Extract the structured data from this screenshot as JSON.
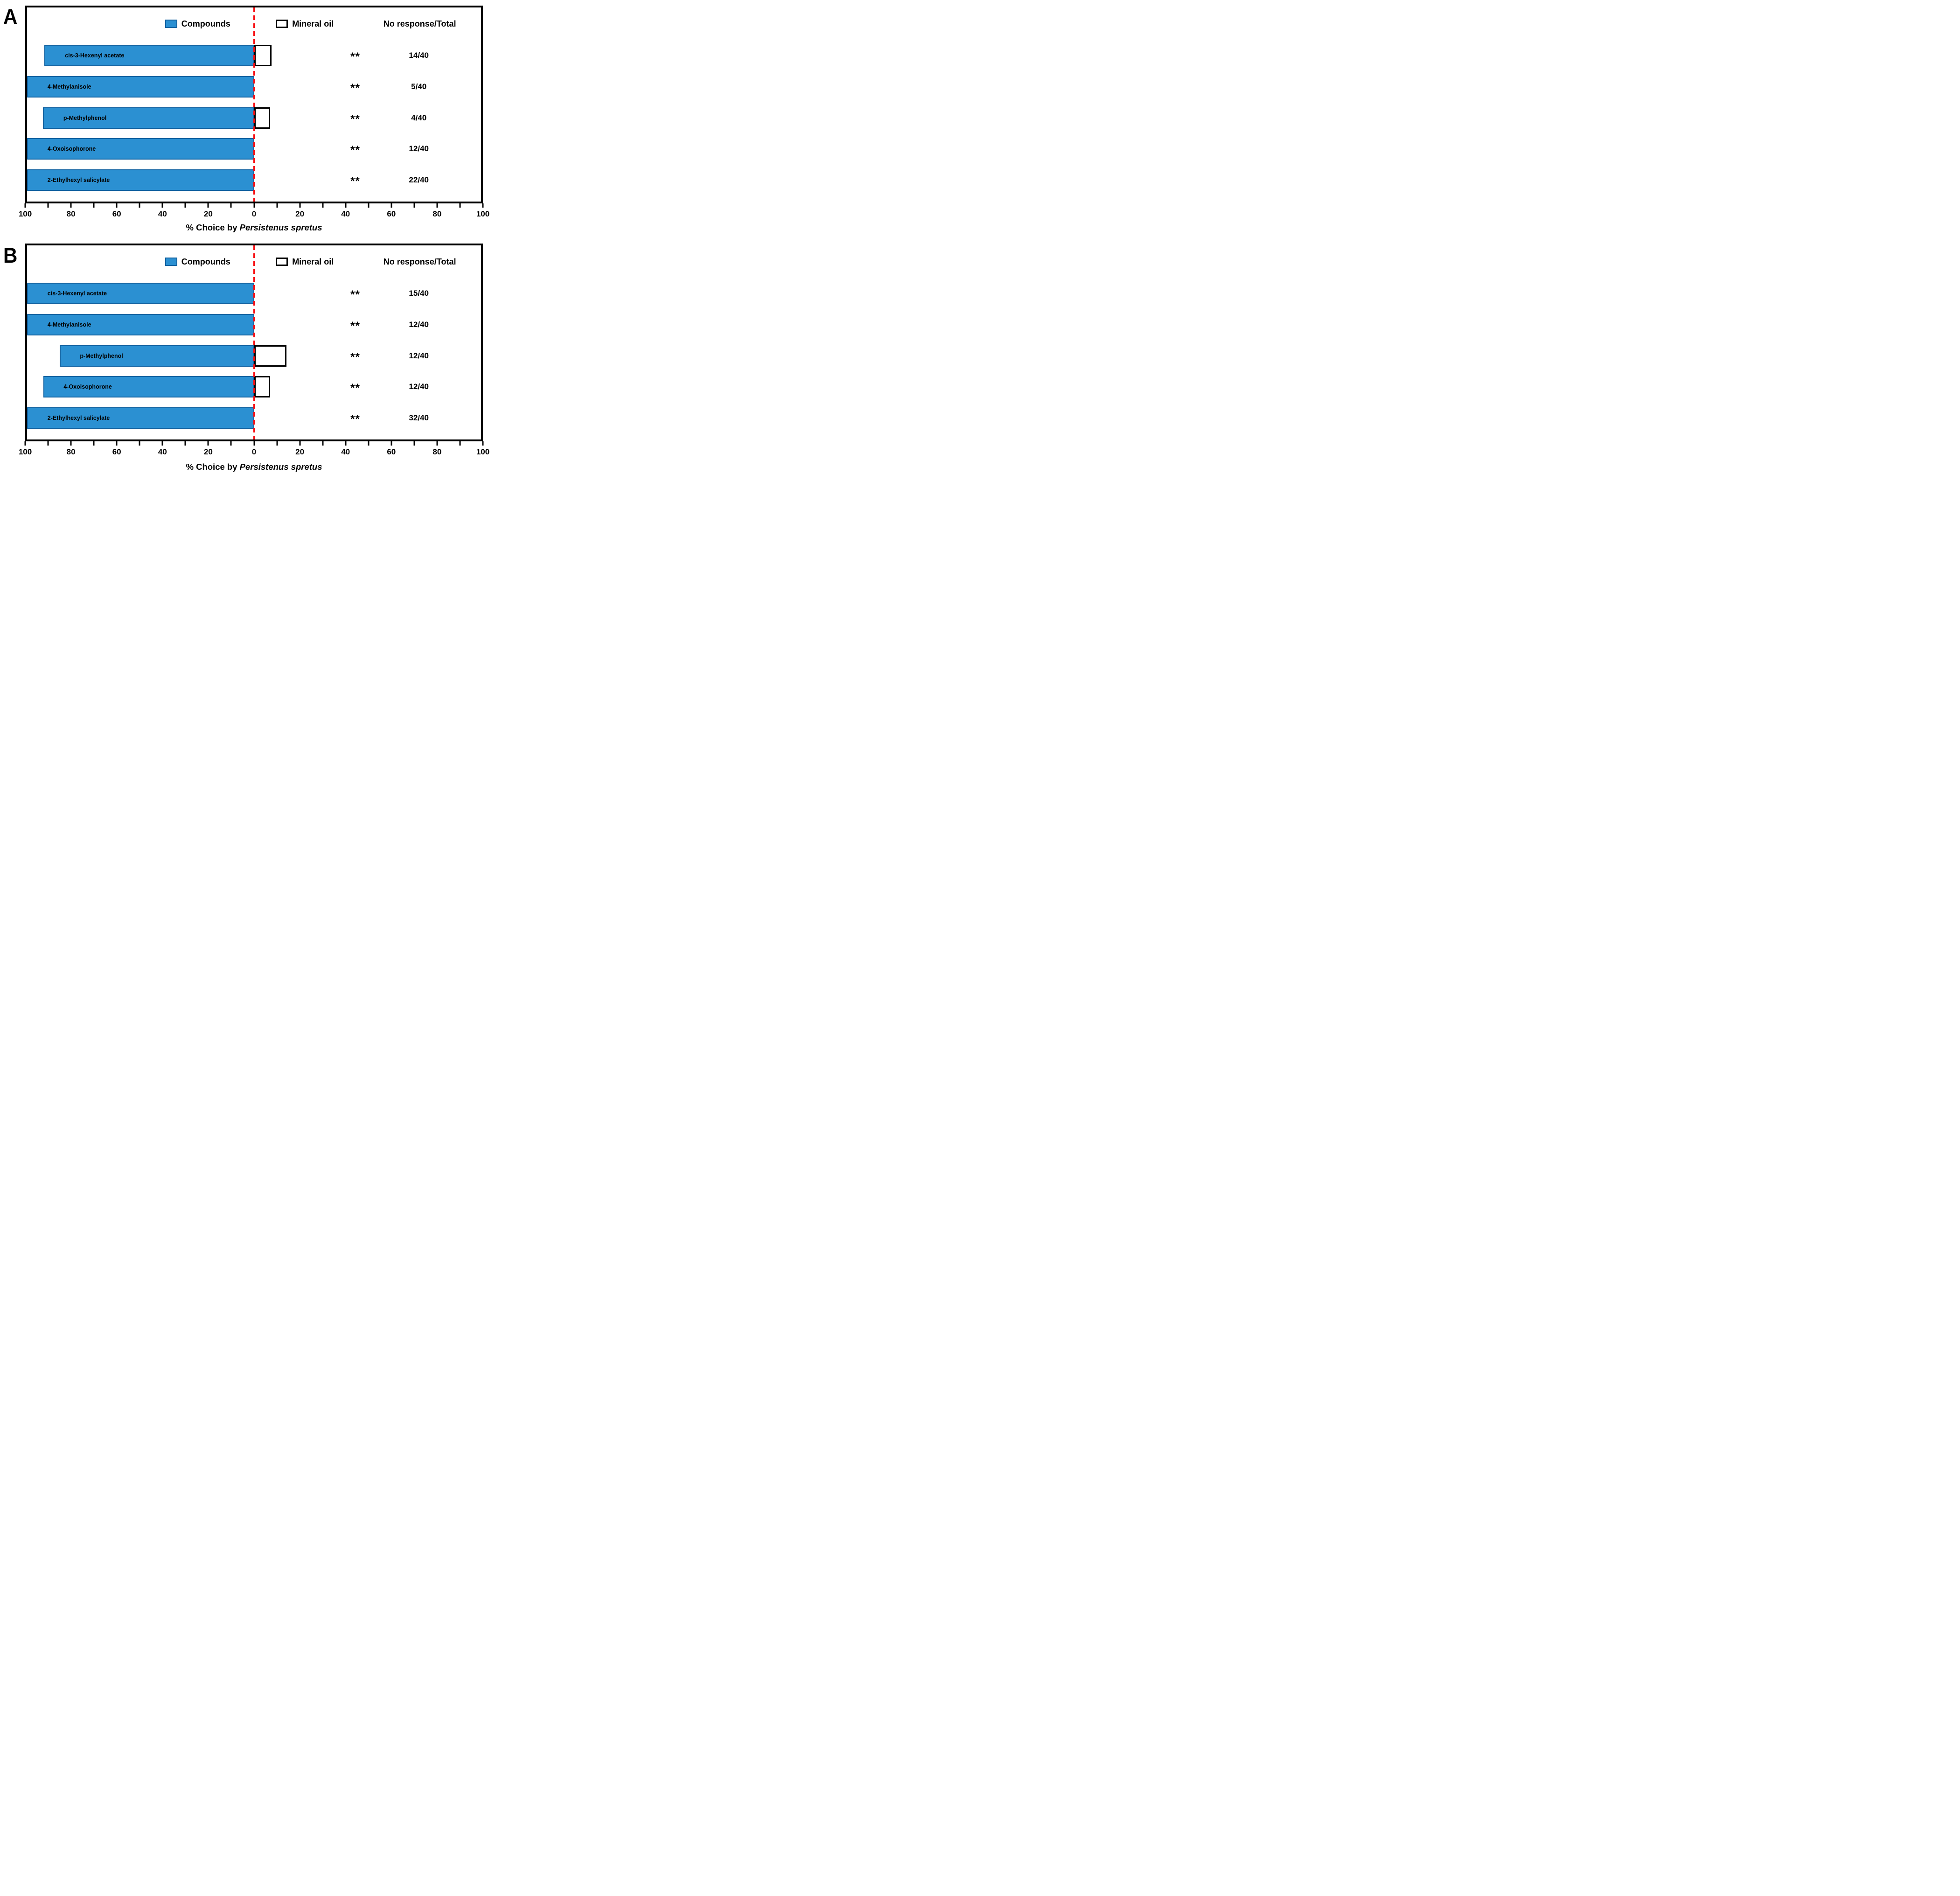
{
  "figure": {
    "panels": [
      {
        "label": "A",
        "legend": {
          "compounds": "Compounds",
          "mineral_oil": "Mineral oil",
          "header": "No response/Total"
        },
        "rows": [
          {
            "compound": "cis-3-Hexenyl acetate",
            "compound_pct": 92.3,
            "mineral_oil_pct": 7.7,
            "significance": "**",
            "no_response_total": "14/40"
          },
          {
            "compound": "4-Methylanisole",
            "compound_pct": 100,
            "mineral_oil_pct": 0,
            "significance": "**",
            "no_response_total": "5/40"
          },
          {
            "compound": "p-Methylphenol",
            "compound_pct": 93,
            "mineral_oil_pct": 7,
            "significance": "**",
            "no_response_total": "4/40"
          },
          {
            "compound": "4-Oxoisophorone",
            "compound_pct": 100,
            "mineral_oil_pct": 0,
            "significance": "**",
            "no_response_total": "12/40"
          },
          {
            "compound": "2-Ethylhexyl salicylate",
            "compound_pct": 100,
            "mineral_oil_pct": 0,
            "significance": "**",
            "no_response_total": "22/40"
          }
        ],
        "x_tick_labels": [
          "100",
          "80",
          "60",
          "40",
          "20",
          "0",
          "20",
          "40",
          "60",
          "80",
          "100"
        ],
        "axis_title_prefix": "% Choice by ",
        "axis_title_species": "Persistenus spretus"
      },
      {
        "label": "B",
        "legend": {
          "compounds": "Compounds",
          "mineral_oil": "Mineral oil",
          "header": "No response/Total"
        },
        "rows": [
          {
            "compound": "cis-3-Hexenyl acetate",
            "compound_pct": 100,
            "mineral_oil_pct": 0,
            "significance": "**",
            "no_response_total": "15/40"
          },
          {
            "compound": "4-Methylanisole",
            "compound_pct": 100,
            "mineral_oil_pct": 0,
            "significance": "**",
            "no_response_total": "12/40"
          },
          {
            "compound": "p-Methylphenol",
            "compound_pct": 85.7,
            "mineral_oil_pct": 14.3,
            "significance": "**",
            "no_response_total": "12/40"
          },
          {
            "compound": "4-Oxoisophorone",
            "compound_pct": 92.9,
            "mineral_oil_pct": 7.1,
            "significance": "**",
            "no_response_total": "12/40"
          },
          {
            "compound": "2-Ethylhexyl salicylate",
            "compound_pct": 100,
            "mineral_oil_pct": 0,
            "significance": "**",
            "no_response_total": "32/40"
          }
        ],
        "x_tick_labels": [
          "100",
          "80",
          "60",
          "40",
          "20",
          "0",
          "20",
          "40",
          "60",
          "80",
          "100"
        ],
        "axis_title_prefix": "% Choice by ",
        "axis_title_species": "Persistenus spretus"
      }
    ],
    "colors": {
      "compound_fill": "#2B90D2",
      "compound_border": "#1362A0",
      "mineral_oil_fill": "#FFFFFF",
      "mineral_oil_border": "#000000",
      "zero_line": "#F70D11",
      "text": "#000000"
    }
  },
  "chart_data": [
    {
      "panel": "A",
      "type": "bar",
      "orientation": "horizontal-diverging",
      "title": "A",
      "categories": [
        "cis-3-Hexenyl acetate",
        "4-Methylanisole",
        "p-Methylphenol",
        "4-Oxoisophorone",
        "2-Ethylhexyl salicylate"
      ],
      "series": [
        {
          "name": "Compounds",
          "side": "left",
          "values": [
            92.3,
            100,
            93,
            100,
            100
          ]
        },
        {
          "name": "Mineral oil",
          "side": "right",
          "values": [
            7.7,
            0,
            7,
            0,
            0
          ]
        }
      ],
      "significance": [
        "**",
        "**",
        "**",
        "**",
        "**"
      ],
      "no_response_total": [
        "14/40",
        "5/40",
        "4/40",
        "12/40",
        "22/40"
      ],
      "no_response_header": "No response/Total",
      "xlabel": "% Choice by Persistenus spretus",
      "x_ticks": [
        100,
        80,
        60,
        40,
        20,
        0,
        20,
        40,
        60,
        80,
        100
      ],
      "xlim": [
        -100,
        100
      ],
      "minor_tick_interval": 10,
      "zero_line": {
        "style": "dashed",
        "color": "#F70D11"
      },
      "legend_entries": [
        "Compounds",
        "Mineral oil"
      ],
      "legend_position": "top-inside",
      "grid": false
    },
    {
      "panel": "B",
      "type": "bar",
      "orientation": "horizontal-diverging",
      "title": "B",
      "categories": [
        "cis-3-Hexenyl acetate",
        "4-Methylanisole",
        "p-Methylphenol",
        "4-Oxoisophorone",
        "2-Ethylhexyl salicylate"
      ],
      "series": [
        {
          "name": "Compounds",
          "side": "left",
          "values": [
            100,
            100,
            85.7,
            92.9,
            100
          ]
        },
        {
          "name": "Mineral oil",
          "side": "right",
          "values": [
            0,
            0,
            14.3,
            7.1,
            0
          ]
        }
      ],
      "significance": [
        "**",
        "**",
        "**",
        "**",
        "**"
      ],
      "no_response_total": [
        "15/40",
        "12/40",
        "12/40",
        "12/40",
        "32/40"
      ],
      "no_response_header": "No response/Total",
      "xlabel": "% Choice by Persistenus spretus",
      "x_ticks": [
        100,
        80,
        60,
        40,
        20,
        0,
        20,
        40,
        60,
        80,
        100
      ],
      "xlim": [
        -100,
        100
      ],
      "minor_tick_interval": 10,
      "zero_line": {
        "style": "dashed",
        "color": "#F70D11"
      },
      "legend_entries": [
        "Compounds",
        "Mineral oil"
      ],
      "legend_position": "top-inside",
      "grid": false
    }
  ]
}
